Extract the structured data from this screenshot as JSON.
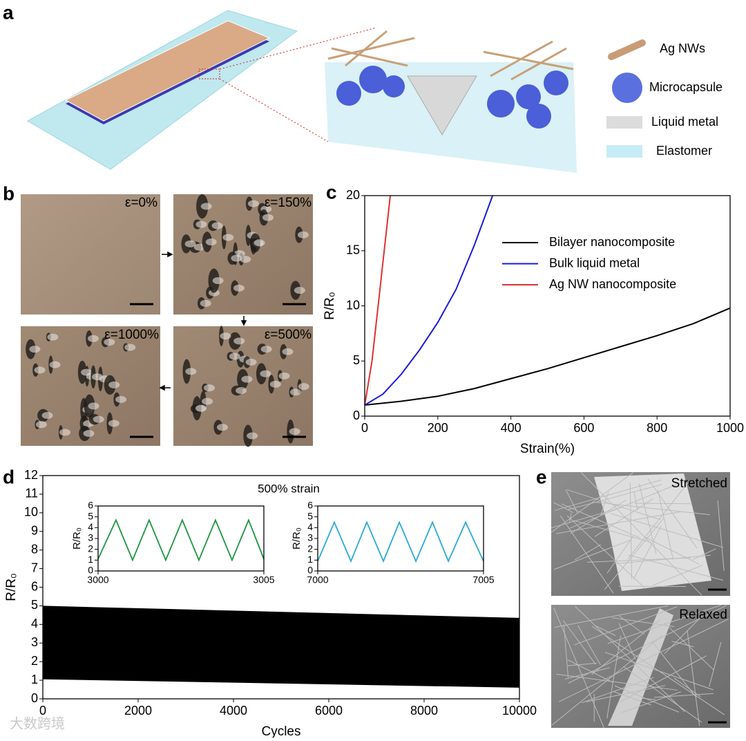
{
  "panel_labels": [
    "a",
    "b",
    "c",
    "d",
    "e"
  ],
  "schematic": {
    "legend": [
      "Ag NWs",
      "Microcapsule",
      "Liquid metal",
      "Elastomer"
    ]
  },
  "micrographs": {
    "strain_labels": [
      "ε=0%",
      "ε=150%",
      "ε=1000%",
      "ε=500%"
    ]
  },
  "sem": {
    "labels": [
      "Stretched",
      "Relaxed"
    ]
  },
  "watermark": "大数跨境",
  "chart_data": [
    {
      "type": "line",
      "xlabel": "Strain(%)",
      "ylabel": "R/R₀",
      "xlim": [
        0,
        1000
      ],
      "ylim": [
        0,
        20
      ],
      "xticks": [
        0,
        200,
        400,
        600,
        800,
        1000
      ],
      "yticks": [
        0,
        5,
        10,
        15,
        20
      ],
      "legend": "upper right",
      "series": [
        {
          "name": "Bilayer nanocomposite",
          "color": "#000000",
          "x": [
            0,
            100,
            200,
            300,
            400,
            500,
            600,
            700,
            800,
            900,
            1000
          ],
          "values": [
            1,
            1.35,
            1.8,
            2.5,
            3.4,
            4.3,
            5.3,
            6.3,
            7.3,
            8.4,
            9.8
          ]
        },
        {
          "name": "Bulk liquid metal",
          "color": "#1a1adb",
          "x": [
            0,
            50,
            100,
            150,
            200,
            250,
            300,
            350
          ],
          "values": [
            1,
            2,
            3.8,
            6,
            8.5,
            11.5,
            15.5,
            20
          ]
        },
        {
          "name": "Ag NW nanocomposite",
          "color": "#e03030",
          "x": [
            0,
            20,
            40,
            60,
            70
          ],
          "values": [
            1,
            5,
            11,
            17,
            20
          ]
        }
      ]
    },
    {
      "type": "area",
      "xlabel": "Cycles",
      "ylabel": "R/R₀",
      "annotation": "500%  strain",
      "xlim": [
        0,
        10000
      ],
      "ylim": [
        0,
        12
      ],
      "xticks": [
        0,
        2000,
        4000,
        6000,
        8000,
        10000
      ],
      "yticks": [
        0,
        1,
        2,
        3,
        4,
        5,
        6,
        7,
        8,
        9,
        10,
        11,
        12
      ],
      "x": [
        0,
        10000
      ],
      "upper": [
        5,
        4.35
      ],
      "lower": [
        1.05,
        0.6
      ],
      "color": "#000000"
    },
    {
      "type": "line",
      "ylabel": "R/R₀",
      "xlim": [
        3000,
        3005
      ],
      "ylim": [
        0,
        6
      ],
      "xticks": [
        3000,
        3005
      ],
      "yticks": [
        0,
        1,
        2,
        3,
        4,
        5,
        6
      ],
      "series": [
        {
          "color": "#1a9641",
          "x": [
            3000,
            3000.54,
            3001.04,
            3001.54,
            3002.04,
            3002.54,
            3003.04,
            3003.54,
            3004.04,
            3004.54,
            3005
          ],
          "values": [
            1.1,
            4.7,
            1,
            4.7,
            1,
            4.7,
            1,
            4.7,
            1,
            4.7,
            1.1
          ]
        }
      ]
    },
    {
      "type": "line",
      "ylabel": "R/R₀",
      "xlim": [
        7000,
        7005
      ],
      "ylim": [
        0,
        6
      ],
      "xticks": [
        7000,
        7005
      ],
      "yticks": [
        0,
        1,
        2,
        3,
        4,
        5,
        6
      ],
      "series": [
        {
          "color": "#2ba9d6",
          "x": [
            7000,
            7000.5,
            7001,
            7001.48,
            7001.98,
            7002.46,
            7002.96,
            7003.46,
            7003.94,
            7004.46,
            7005
          ],
          "values": [
            0.9,
            4.5,
            0.9,
            4.5,
            0.9,
            4.5,
            0.9,
            4.5,
            0.9,
            4.5,
            0.9
          ]
        }
      ]
    }
  ]
}
